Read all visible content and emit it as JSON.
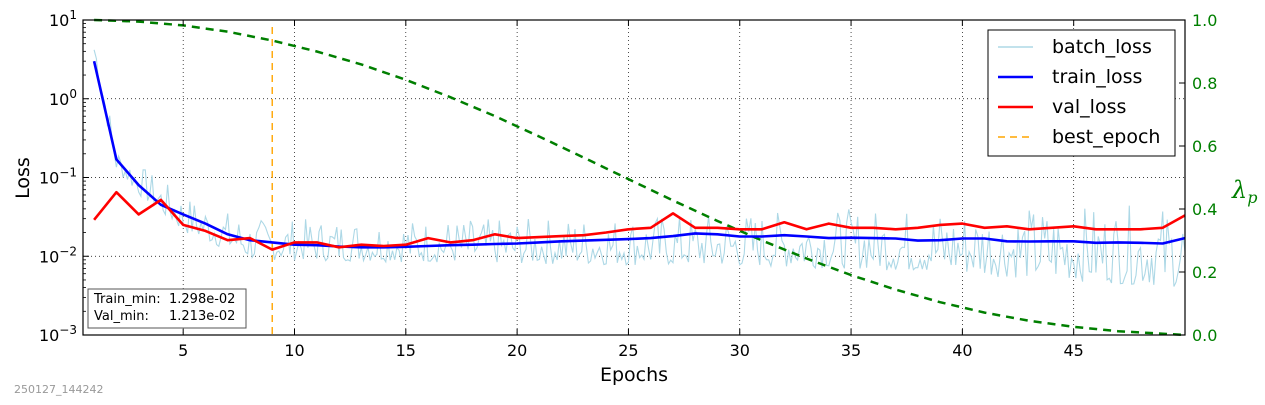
{
  "chart_data": {
    "type": "line",
    "xlabel": "Epochs",
    "ylabel": "Loss",
    "y2label_symbol": "λ",
    "y2label_subscript": "p",
    "yscale": "log",
    "xlim": [
      0.5,
      50
    ],
    "ylim": [
      0.001,
      10
    ],
    "y2lim": [
      0.0,
      1.0
    ],
    "xticks": [
      5,
      10,
      15,
      20,
      25,
      30,
      35,
      40,
      45
    ],
    "yticks": [
      {
        "value": 0.001,
        "base": "10",
        "exp": "−3"
      },
      {
        "value": 0.01,
        "base": "10",
        "exp": "−2"
      },
      {
        "value": 0.1,
        "base": "10",
        "exp": "−1"
      },
      {
        "value": 1,
        "base": "10",
        "exp": "0"
      },
      {
        "value": 10,
        "base": "10",
        "exp": "1"
      }
    ],
    "y2ticks": [
      "0.0",
      "0.2",
      "0.4",
      "0.6",
      "0.8",
      "1.0"
    ],
    "grid": true,
    "legend_position": "top-right",
    "series": [
      {
        "name": "batch_loss",
        "color": "#add8e6",
        "style": "solid",
        "axis": "left",
        "x_range": [
          1,
          50
        ],
        "points_per_epoch": 10,
        "approx_envelope": [
          {
            "epoch": 1,
            "low": 3.0,
            "high": 8.0
          },
          {
            "epoch": 2,
            "low": 0.12,
            "high": 0.25
          },
          {
            "epoch": 3,
            "low": 0.06,
            "high": 0.15
          },
          {
            "epoch": 5,
            "low": 0.02,
            "high": 0.06
          },
          {
            "epoch": 8,
            "low": 0.009,
            "high": 0.03
          },
          {
            "epoch": 20,
            "low": 0.008,
            "high": 0.03
          },
          {
            "epoch": 35,
            "low": 0.007,
            "high": 0.04
          },
          {
            "epoch": 50,
            "low": 0.004,
            "high": 0.045
          }
        ]
      },
      {
        "name": "train_loss",
        "color": "#0000ff",
        "style": "solid",
        "axis": "left",
        "x": [
          1,
          2,
          3,
          4,
          5,
          6,
          7,
          8,
          9,
          10,
          11,
          12,
          13,
          14,
          15,
          16,
          17,
          18,
          19,
          20,
          21,
          22,
          23,
          24,
          25,
          26,
          27,
          28,
          29,
          30,
          31,
          32,
          33,
          34,
          35,
          36,
          37,
          38,
          39,
          40,
          41,
          42,
          43,
          44,
          45,
          46,
          47,
          48,
          49,
          50
        ],
        "values": [
          3.0,
          0.17,
          0.08,
          0.045,
          0.034,
          0.026,
          0.019,
          0.016,
          0.015,
          0.014,
          0.0138,
          0.0133,
          0.013,
          0.013,
          0.0132,
          0.0135,
          0.0138,
          0.014,
          0.0143,
          0.0145,
          0.015,
          0.0155,
          0.0158,
          0.0162,
          0.0165,
          0.017,
          0.018,
          0.0195,
          0.019,
          0.0178,
          0.0178,
          0.0185,
          0.0178,
          0.017,
          0.0172,
          0.017,
          0.0168,
          0.0158,
          0.016,
          0.0168,
          0.0168,
          0.0155,
          0.0154,
          0.0155,
          0.0155,
          0.0148,
          0.015,
          0.0148,
          0.0145,
          0.017
        ]
      },
      {
        "name": "val_loss",
        "color": "#ff0000",
        "style": "solid",
        "axis": "left",
        "x": [
          1,
          2,
          3,
          4,
          5,
          6,
          7,
          8,
          9,
          10,
          11,
          12,
          13,
          14,
          15,
          16,
          17,
          18,
          19,
          20,
          21,
          22,
          23,
          24,
          25,
          26,
          27,
          28,
          29,
          30,
          31,
          32,
          33,
          34,
          35,
          36,
          37,
          38,
          39,
          40,
          41,
          42,
          43,
          44,
          45,
          46,
          47,
          48,
          49,
          50
        ],
        "values": [
          0.029,
          0.065,
          0.034,
          0.052,
          0.025,
          0.021,
          0.016,
          0.017,
          0.01213,
          0.015,
          0.015,
          0.013,
          0.014,
          0.0135,
          0.014,
          0.017,
          0.015,
          0.016,
          0.019,
          0.017,
          0.0175,
          0.018,
          0.0185,
          0.02,
          0.022,
          0.023,
          0.035,
          0.023,
          0.023,
          0.022,
          0.022,
          0.027,
          0.022,
          0.026,
          0.023,
          0.023,
          0.022,
          0.023,
          0.025,
          0.026,
          0.023,
          0.024,
          0.022,
          0.023,
          0.024,
          0.022,
          0.022,
          0.022,
          0.023,
          0.033
        ]
      },
      {
        "name": "best_epoch",
        "color": "#ffa500",
        "style": "dashed",
        "axis": "left",
        "x_vertical": 9
      },
      {
        "name": "",
        "color": "#007f00",
        "style": "dashed",
        "axis": "right",
        "x": [
          1,
          3,
          5,
          7,
          9,
          11,
          13,
          15,
          17,
          19,
          21,
          23,
          25,
          27,
          29,
          31,
          33,
          35,
          37,
          39,
          41,
          43,
          45,
          47,
          49,
          50
        ],
        "values": [
          1.0,
          0.995,
          0.983,
          0.963,
          0.935,
          0.9,
          0.859,
          0.81,
          0.755,
          0.695,
          0.63,
          0.563,
          0.495,
          0.427,
          0.362,
          0.3,
          0.243,
          0.19,
          0.144,
          0.104,
          0.071,
          0.045,
          0.026,
          0.012,
          0.004,
          0.0
        ]
      }
    ],
    "annotation": {
      "train_min_label": "Train_min:",
      "train_min_value": "1.298e-02",
      "val_min_label": "Val_min:",
      "val_min_value": "1.213e-02"
    }
  },
  "footer": {
    "timestamp": "250127_144242"
  }
}
